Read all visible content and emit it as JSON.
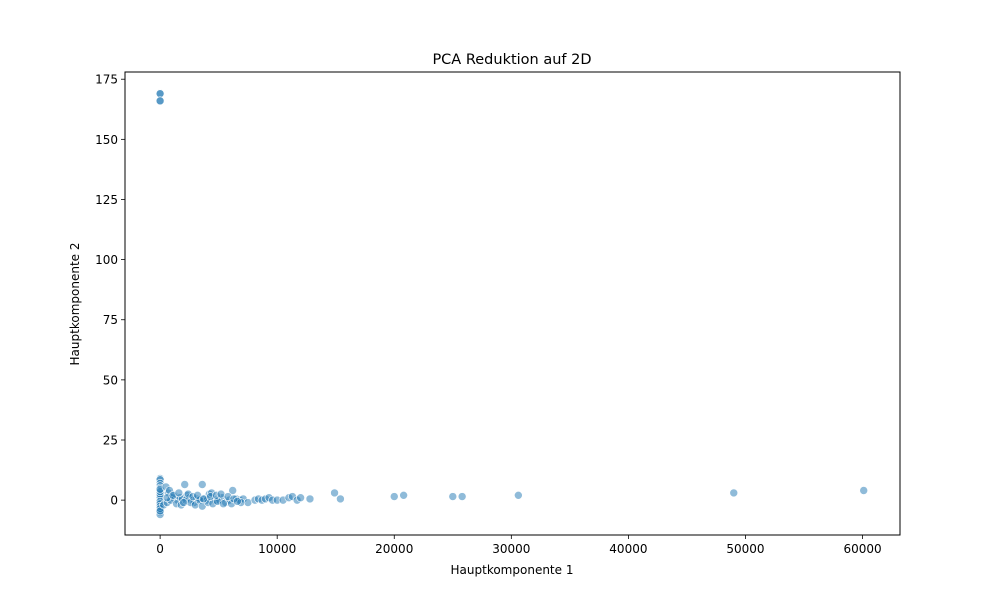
{
  "chart_data": {
    "type": "scatter",
    "title": "PCA Reduktion auf 2D",
    "xlabel": "Hauptkomponente 1",
    "ylabel": "Hauptkomponente 2",
    "xlim": [
      -3000,
      63200
    ],
    "ylim": [
      -14.5,
      178
    ],
    "xticks": [
      0,
      10000,
      20000,
      30000,
      40000,
      50000,
      60000
    ],
    "yticks": [
      0,
      25,
      50,
      75,
      100,
      125,
      150,
      175
    ],
    "grid": false,
    "legend": "none",
    "point_color": "#1f77b4",
    "point_opacity": 0.5,
    "series": [
      {
        "x": [
          0,
          0,
          0,
          0,
          0,
          0,
          0,
          0,
          0,
          0,
          0,
          0,
          0,
          0,
          0,
          0,
          0,
          0,
          0,
          0,
          0,
          0,
          0,
          0,
          0,
          0,
          0,
          0,
          0,
          0,
          500,
          700,
          800,
          1000,
          1200,
          1500,
          1700,
          1900,
          2100,
          2300,
          2500,
          2700,
          2900,
          3100,
          3300,
          3600,
          3800,
          4000,
          4200,
          4400,
          4700,
          5000,
          5300,
          5600,
          5900,
          6200,
          6500,
          6800,
          7100,
          7500,
          300,
          600,
          900,
          1400,
          1800,
          2200,
          2600,
          3000,
          3400,
          3600,
          4100,
          4500,
          4900,
          5400,
          6100,
          6900,
          600,
          1100,
          1600,
          2000,
          2400,
          2800,
          3200,
          3700,
          4300,
          4800,
          5200,
          5800,
          6300,
          6600,
          8100,
          8400,
          8700,
          9000,
          9300,
          9600,
          10000,
          10500,
          11000,
          11300,
          11700,
          12000,
          12800,
          14900,
          15400,
          20000,
          20800,
          25000,
          25800,
          30600,
          49000,
          60100
        ],
        "y": [
          169,
          169,
          166,
          166,
          9,
          8.5,
          7,
          6,
          5,
          4,
          3,
          2,
          1,
          0,
          -1,
          -2,
          -3,
          -4,
          -5,
          -6,
          0.5,
          1.5,
          2.5,
          3.5,
          -0.5,
          -1.5,
          -2.5,
          -3.5,
          4.5,
          -4.5,
          5.5,
          3,
          4,
          1,
          2,
          0,
          1,
          0.5,
          6.5,
          2,
          1,
          0,
          -1,
          0.5,
          0,
          6.5,
          0.5,
          0,
          2.5,
          3,
          0,
          0,
          1,
          -1,
          0,
          4,
          0.5,
          0,
          0.5,
          -1,
          -2,
          -1,
          0,
          -1.5,
          -2,
          0,
          -1,
          -2,
          0,
          -2.5,
          -1,
          -1.5,
          -0.5,
          -1.5,
          -1.5,
          -1,
          1,
          2,
          3,
          -1,
          2.5,
          1.5,
          2,
          0.5,
          1.5,
          2,
          2.5,
          1.5,
          0.5,
          -0.5,
          0,
          0.5,
          0,
          0.5,
          1,
          0,
          0,
          0,
          1,
          1.5,
          0,
          1,
          0.5,
          3,
          0.5,
          1.5,
          2,
          1.5,
          1.5,
          2,
          3,
          4
        ]
      }
    ]
  }
}
